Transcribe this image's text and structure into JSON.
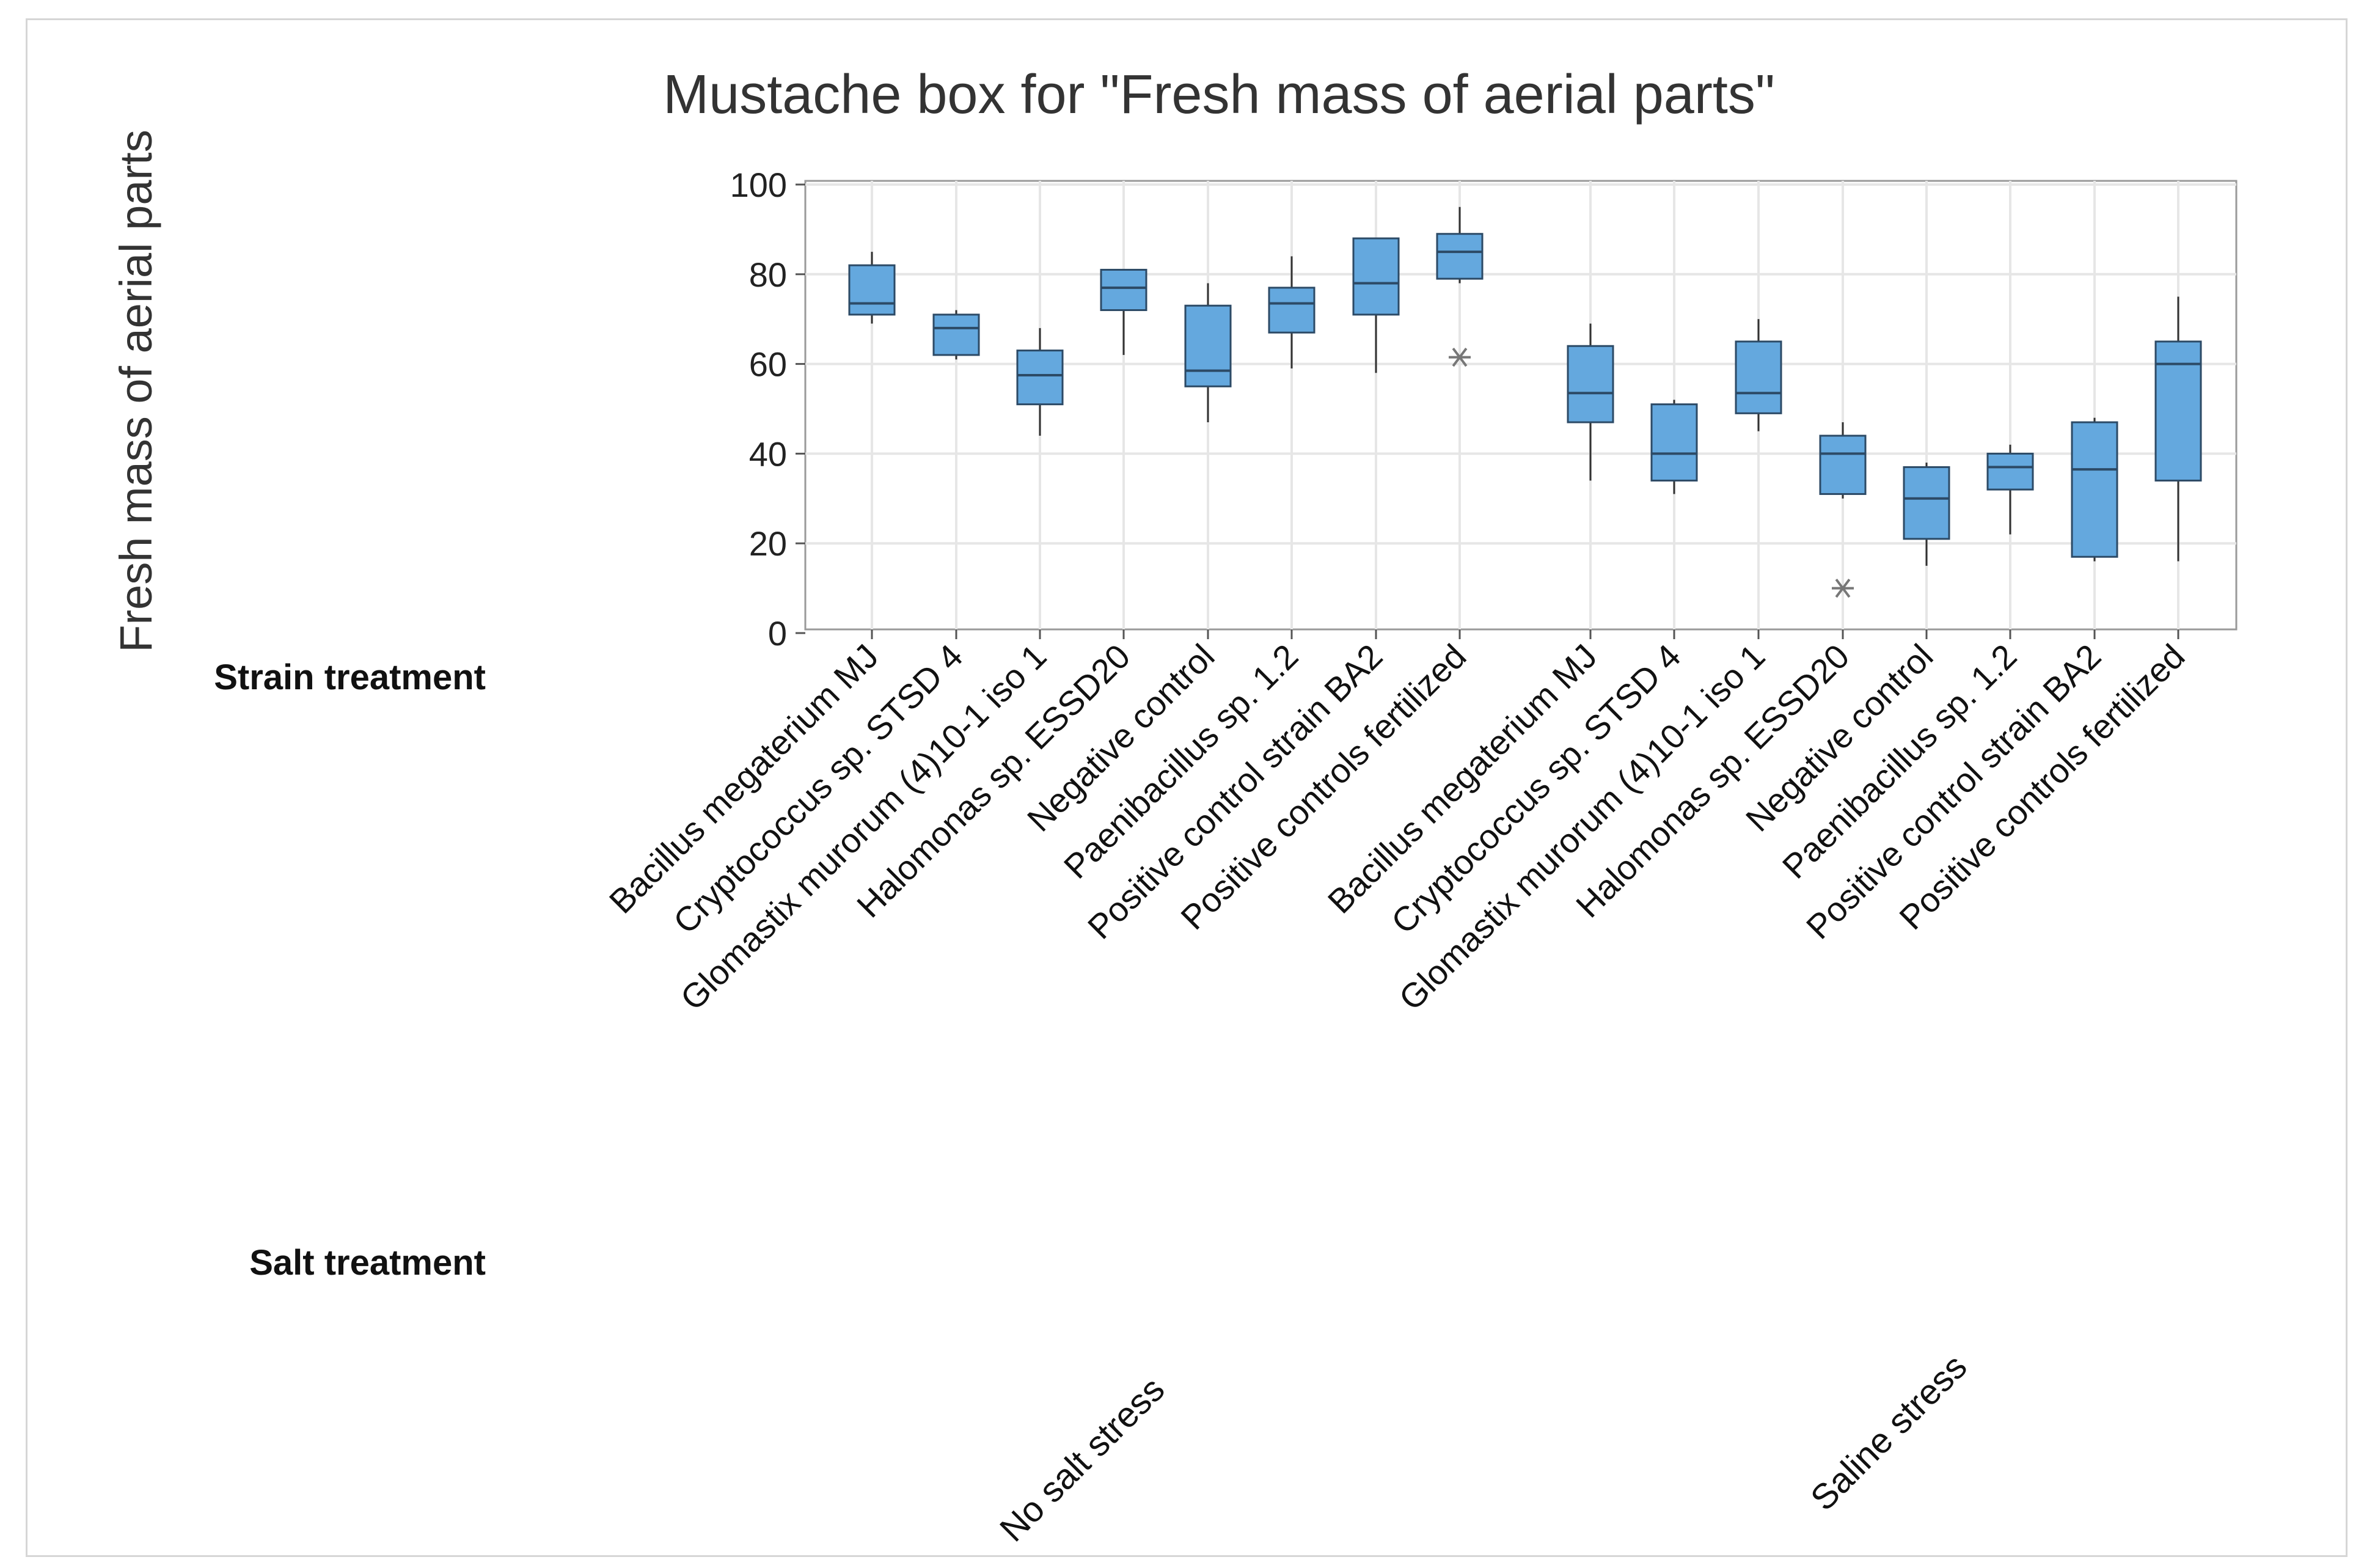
{
  "chart_data": {
    "type": "box",
    "title": "Mustache box for \"Fresh mass of aerial parts\"",
    "ylabel": "Fresh mass of aerial parts",
    "ylim": [
      0,
      100
    ],
    "yticks": [
      0,
      20,
      40,
      60,
      80,
      100
    ],
    "grid": true,
    "colors": {
      "box_fill": "#64a8de",
      "box_stroke": "#2c4a66",
      "whisker": "#333333",
      "outlier": "#777777",
      "grid": "#e6e6e6",
      "frame": "#9a9a9a"
    },
    "row_labels": {
      "strain": "Strain treatment",
      "salt": "Salt treatment"
    },
    "groups": [
      {
        "name": "No salt stress",
        "boxes": [
          {
            "category": "Bacillus megaterium MJ",
            "min": 69,
            "q1": 71,
            "median": 73.5,
            "q3": 82,
            "max": 85,
            "outliers": []
          },
          {
            "category": "Cryptococcus sp. STSD 4",
            "min": 61,
            "q1": 62,
            "median": 68,
            "q3": 71,
            "max": 72,
            "outliers": []
          },
          {
            "category": "Glomastix murorum (4)10-1 iso 1",
            "min": 44,
            "q1": 51,
            "median": 57.5,
            "q3": 63,
            "max": 68,
            "outliers": []
          },
          {
            "category": "Halomonas sp. ESSD20",
            "min": 62,
            "q1": 72,
            "median": 77,
            "q3": 81,
            "max": 81,
            "outliers": []
          },
          {
            "category": "Negative control",
            "min": 47,
            "q1": 55,
            "median": 58.5,
            "q3": 73,
            "max": 78,
            "outliers": []
          },
          {
            "category": "Paenibacillus sp. 1.2",
            "min": 59,
            "q1": 67,
            "median": 73.5,
            "q3": 77,
            "max": 84,
            "outliers": []
          },
          {
            "category": "Positive control strain BA2",
            "min": 58,
            "q1": 71,
            "median": 78,
            "q3": 88,
            "max": 88,
            "outliers": []
          },
          {
            "category": "Positive controls fertilized",
            "min": 78,
            "q1": 79,
            "median": 85,
            "q3": 89,
            "max": 95,
            "outliers": [
              61.5
            ]
          }
        ]
      },
      {
        "name": "Saline stress",
        "boxes": [
          {
            "category": "Bacillus megaterium MJ",
            "min": 34,
            "q1": 47,
            "median": 53.5,
            "q3": 64,
            "max": 69,
            "outliers": []
          },
          {
            "category": "Cryptococcus sp. STSD 4",
            "min": 31,
            "q1": 34,
            "median": 40,
            "q3": 51,
            "max": 52,
            "outliers": []
          },
          {
            "category": "Glomastix murorum (4)10-1 iso 1",
            "min": 45,
            "q1": 49,
            "median": 53.5,
            "q3": 65,
            "max": 70,
            "outliers": []
          },
          {
            "category": "Halomonas sp. ESSD20",
            "min": 30,
            "q1": 31,
            "median": 40,
            "q3": 44,
            "max": 47,
            "outliers": [
              10
            ]
          },
          {
            "category": "Negative control",
            "min": 15,
            "q1": 21,
            "median": 30,
            "q3": 37,
            "max": 38,
            "outliers": []
          },
          {
            "category": "Paenibacillus sp. 1.2",
            "min": 22,
            "q1": 32,
            "median": 37,
            "q3": 40,
            "max": 42,
            "outliers": []
          },
          {
            "category": "Positive control strain BA2",
            "min": 16,
            "q1": 17,
            "median": 36.5,
            "q3": 47,
            "max": 48,
            "outliers": []
          },
          {
            "category": "Positive controls fertilized",
            "min": 16,
            "q1": 34,
            "median": 60,
            "q3": 65,
            "max": 75,
            "outliers": []
          }
        ]
      }
    ]
  }
}
